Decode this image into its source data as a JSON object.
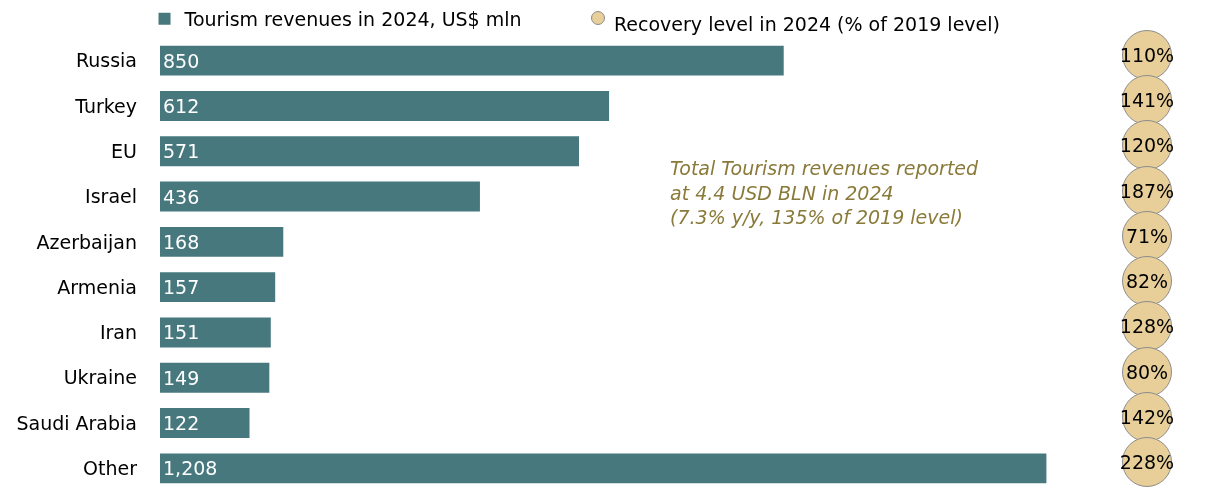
{
  "chart_data": {
    "type": "bar",
    "orientation": "horizontal",
    "categories": [
      "Russia",
      "Turkey",
      "EU",
      "Israel",
      "Azerbaijan",
      "Armenia",
      "Iran",
      "Ukraine",
      "Saudi Arabia",
      "Other"
    ],
    "tick_labels": "y",
    "grid": false,
    "legend": "top",
    "data_labels": true,
    "series": [
      {
        "name": "Tourism revenues in 2024, US$ mln",
        "color": "#47787e",
        "values": [
          850,
          612,
          571,
          436,
          168,
          157,
          151,
          149,
          122,
          1208
        ],
        "value_labels": [
          "850",
          "612",
          "571",
          "436",
          "168",
          "157",
          "151",
          "149",
          "122",
          "1,208"
        ]
      }
    ],
    "annotations": [
      "Recovery level in 2024 (% of 2019 level)",
      "Total Tourism revenues reported\nat 4.4 USD BLN in 2024\n(7.3% y/y, 135% of 2019 level)",
      "110%",
      "141%",
      "120%",
      "187%",
      "71%",
      "82%",
      "128%",
      "80%",
      "142%",
      "228%"
    ]
  }
}
